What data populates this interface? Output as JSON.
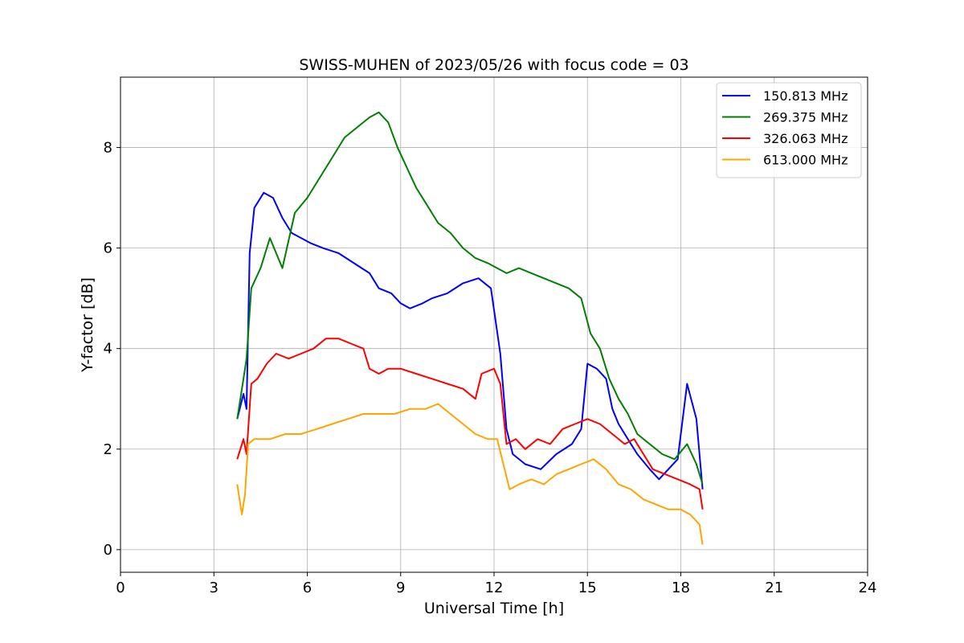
{
  "chart_data": {
    "type": "line",
    "title": "SWISS-MUHEN of 2023/05/26 with focus code = 03",
    "xlabel": "Universal Time [h]",
    "ylabel": "Y-factor [dB]",
    "xlim": [
      0,
      24
    ],
    "ylim": [
      -0.45,
      9.4
    ],
    "xticks": [
      "0",
      "3",
      "6",
      "9",
      "12",
      "15",
      "18",
      "21",
      "24"
    ],
    "yticks": [
      "0",
      "2",
      "4",
      "6",
      "8"
    ],
    "grid": true,
    "legend_position": "top-right",
    "series": [
      {
        "name": "150.813 MHz",
        "color": "#0000ff",
        "x": [
          3.75,
          3.95,
          4.05,
          4.15,
          4.3,
          4.6,
          4.9,
          5.2,
          5.5,
          5.8,
          6.1,
          6.5,
          7.0,
          7.5,
          8.0,
          8.3,
          8.7,
          9.0,
          9.3,
          9.7,
          10.0,
          10.5,
          11.0,
          11.5,
          11.9,
          12.2,
          12.4,
          12.6,
          13.0,
          13.5,
          14.0,
          14.5,
          14.8,
          15.0,
          15.3,
          15.6,
          15.8,
          16.0,
          16.3,
          16.6,
          17.0,
          17.3,
          17.6,
          17.9,
          18.2,
          18.5,
          18.7
        ],
        "y": [
          2.6,
          3.1,
          2.8,
          5.9,
          6.8,
          7.1,
          7.0,
          6.6,
          6.3,
          6.2,
          6.1,
          6.0,
          5.9,
          5.7,
          5.5,
          5.2,
          5.1,
          4.9,
          4.8,
          4.9,
          5.0,
          5.1,
          5.3,
          5.4,
          5.2,
          3.9,
          2.4,
          1.9,
          1.7,
          1.6,
          1.9,
          2.1,
          2.4,
          3.7,
          3.6,
          3.4,
          2.8,
          2.5,
          2.2,
          1.9,
          1.6,
          1.4,
          1.6,
          1.8,
          3.3,
          2.6,
          1.2
        ]
      },
      {
        "name": "269.375 MHz",
        "color": "#008000",
        "x": [
          3.75,
          3.95,
          4.05,
          4.2,
          4.5,
          4.8,
          5.2,
          5.6,
          6.0,
          6.4,
          6.8,
          7.2,
          7.6,
          8.0,
          8.3,
          8.6,
          8.9,
          9.2,
          9.5,
          9.8,
          10.2,
          10.6,
          11.0,
          11.4,
          11.8,
          12.1,
          12.4,
          12.8,
          13.2,
          13.6,
          14.0,
          14.4,
          14.8,
          15.1,
          15.4,
          15.7,
          16.0,
          16.3,
          16.6,
          17.0,
          17.4,
          17.8,
          18.2,
          18.5,
          18.7
        ],
        "y": [
          2.6,
          3.4,
          3.8,
          5.2,
          5.6,
          6.2,
          5.6,
          6.7,
          7.0,
          7.4,
          7.8,
          8.2,
          8.4,
          8.6,
          8.7,
          8.5,
          8.0,
          7.6,
          7.2,
          6.9,
          6.5,
          6.3,
          6.0,
          5.8,
          5.7,
          5.6,
          5.5,
          5.6,
          5.5,
          5.4,
          5.3,
          5.2,
          5.0,
          4.3,
          4.0,
          3.4,
          3.0,
          2.7,
          2.3,
          2.1,
          1.9,
          1.8,
          2.1,
          1.7,
          1.3
        ]
      },
      {
        "name": "326.063 MHz",
        "color": "#ff0000",
        "x": [
          3.75,
          3.95,
          4.05,
          4.2,
          4.4,
          4.7,
          5.0,
          5.4,
          5.8,
          6.2,
          6.6,
          7.0,
          7.4,
          7.8,
          8.0,
          8.3,
          8.6,
          9.0,
          9.5,
          10.0,
          10.5,
          11.0,
          11.4,
          11.6,
          12.0,
          12.2,
          12.4,
          12.7,
          13.0,
          13.4,
          13.8,
          14.2,
          14.6,
          15.0,
          15.4,
          15.8,
          16.2,
          16.5,
          16.8,
          17.1,
          17.5,
          17.9,
          18.3,
          18.6,
          18.7
        ],
        "y": [
          1.8,
          2.2,
          1.9,
          3.3,
          3.4,
          3.7,
          3.9,
          3.8,
          3.9,
          4.0,
          4.2,
          4.2,
          4.1,
          4.0,
          3.6,
          3.5,
          3.6,
          3.6,
          3.5,
          3.4,
          3.3,
          3.2,
          3.0,
          3.5,
          3.6,
          3.3,
          2.1,
          2.2,
          2.0,
          2.2,
          2.1,
          2.4,
          2.5,
          2.6,
          2.5,
          2.3,
          2.1,
          2.2,
          1.9,
          1.6,
          1.5,
          1.4,
          1.3,
          1.2,
          0.8
        ]
      },
      {
        "name": "613.000 MHz",
        "color": "#ffa500",
        "x": [
          3.75,
          3.9,
          4.0,
          4.1,
          4.3,
          4.8,
          5.3,
          5.8,
          6.3,
          6.8,
          7.3,
          7.8,
          8.3,
          8.8,
          9.3,
          9.8,
          10.2,
          10.6,
          11.0,
          11.4,
          11.8,
          12.1,
          12.3,
          12.5,
          12.8,
          13.2,
          13.6,
          14.0,
          14.4,
          14.8,
          15.2,
          15.6,
          16.0,
          16.4,
          16.8,
          17.2,
          17.6,
          18.0,
          18.3,
          18.6,
          18.7
        ],
        "y": [
          1.3,
          0.7,
          1.1,
          2.1,
          2.2,
          2.2,
          2.3,
          2.3,
          2.4,
          2.5,
          2.6,
          2.7,
          2.7,
          2.7,
          2.8,
          2.8,
          2.9,
          2.7,
          2.5,
          2.3,
          2.2,
          2.2,
          1.7,
          1.2,
          1.3,
          1.4,
          1.3,
          1.5,
          1.6,
          1.7,
          1.8,
          1.6,
          1.3,
          1.2,
          1.0,
          0.9,
          0.8,
          0.8,
          0.7,
          0.5,
          0.1
        ]
      }
    ]
  }
}
